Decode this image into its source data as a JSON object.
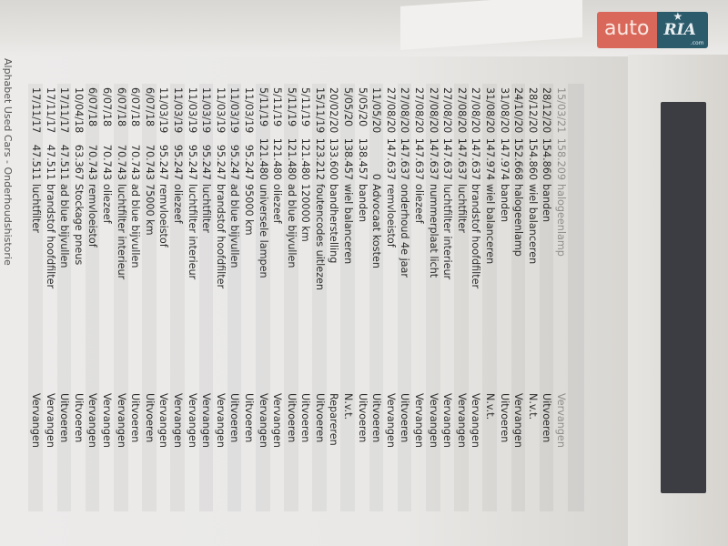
{
  "logo": {
    "auto": "auto",
    "ria": "RIA",
    "com": ".com"
  },
  "footer": "Alphabet  Used Cars - Onderhoudshistorie",
  "rows": [
    {
      "date": "15/03/21",
      "km": "158.209",
      "desc": "halogeenlamp",
      "action": "Vervangen"
    },
    {
      "date": "28/12/20",
      "km": "154.860",
      "desc": "banden",
      "action": "Uitvoeren"
    },
    {
      "date": "28/12/20",
      "km": "154.860",
      "desc": "wiel balanceren",
      "action": "N.v.t."
    },
    {
      "date": "24/10/20",
      "km": "152.668",
      "desc": "halogeenlamp",
      "action": "Vervangen"
    },
    {
      "date": "31/08/20",
      "km": "147.974",
      "desc": "banden",
      "action": "Uitvoeren"
    },
    {
      "date": "31/08/20",
      "km": "147.974",
      "desc": "wiel balanceren",
      "action": "N.v.t."
    },
    {
      "date": "27/08/20",
      "km": "147.637",
      "desc": "brandstof hoofdfilter",
      "action": "Vervangen"
    },
    {
      "date": "27/08/20",
      "km": "147.637",
      "desc": "luchtfilter",
      "action": "Vervangen"
    },
    {
      "date": "27/08/20",
      "km": "147.637",
      "desc": "luchtfilter interieur",
      "action": "Vervangen"
    },
    {
      "date": "27/08/20",
      "km": "147.637",
      "desc": "nummerplaat licht",
      "action": "Vervangen"
    },
    {
      "date": "27/08/20",
      "km": "147.637",
      "desc": "oliezeef",
      "action": "Vervangen"
    },
    {
      "date": "27/08/20",
      "km": "147.637",
      "desc": "onderhoud 4e jaar",
      "action": "Uitvoeren"
    },
    {
      "date": "27/08/20",
      "km": "147.637",
      "desc": "remvloeistof",
      "action": "Vervangen"
    },
    {
      "date": "11/05/20",
      "km": "0",
      "desc": "Advocaat kosten",
      "action": "Uitvoeren"
    },
    {
      "date": "5/05/20",
      "km": "138.457",
      "desc": "banden",
      "action": "Uitvoeren"
    },
    {
      "date": "5/05/20",
      "km": "138.457",
      "desc": "wiel balanceren",
      "action": "N.v.t."
    },
    {
      "date": "20/02/20",
      "km": "133.600",
      "desc": "bandherstelling",
      "action": "Repareren"
    },
    {
      "date": "15/11/19",
      "km": "123.212",
      "desc": "foutencodes uitlezen",
      "action": "Uitvoeren"
    },
    {
      "date": "5/11/19",
      "km": "121.480",
      "desc": "120000 km",
      "action": "Uitvoeren"
    },
    {
      "date": "5/11/19",
      "km": "121.480",
      "desc": "ad blue bijvullen",
      "action": "Uitvoeren"
    },
    {
      "date": "5/11/19",
      "km": "121.480",
      "desc": "oliezeef",
      "action": "Vervangen"
    },
    {
      "date": "5/11/19",
      "km": "121.480",
      "desc": "universele lampen",
      "action": "Vervangen"
    },
    {
      "date": "11/03/19",
      "km": "95.247",
      "desc": "95000 km",
      "action": "Uitvoeren"
    },
    {
      "date": "11/03/19",
      "km": "95.247",
      "desc": "ad blue bijvullen",
      "action": "Uitvoeren"
    },
    {
      "date": "11/03/19",
      "km": "95.247",
      "desc": "brandstof hoofdfilter",
      "action": "Vervangen"
    },
    {
      "date": "11/03/19",
      "km": "95.247",
      "desc": "luchtfilter",
      "action": "Vervangen"
    },
    {
      "date": "11/03/19",
      "km": "95.247",
      "desc": "luchtfilter interieur",
      "action": "Vervangen"
    },
    {
      "date": "11/03/19",
      "km": "95.247",
      "desc": "oliezeef",
      "action": "Vervangen"
    },
    {
      "date": "11/03/19",
      "km": "95.247",
      "desc": "remvloeistof",
      "action": "Vervangen"
    },
    {
      "date": "6/07/18",
      "km": "70.743",
      "desc": "75000 km",
      "action": "Uitvoeren"
    },
    {
      "date": "6/07/18",
      "km": "70.743",
      "desc": "ad blue bijvullen",
      "action": "Uitvoeren"
    },
    {
      "date": "6/07/18",
      "km": "70.743",
      "desc": "luchtfilter interieur",
      "action": "Vervangen"
    },
    {
      "date": "6/07/18",
      "km": "70.743",
      "desc": "oliezeef",
      "action": "Vervangen"
    },
    {
      "date": "6/07/18",
      "km": "70.743",
      "desc": "remvloeistof",
      "action": "Vervangen"
    },
    {
      "date": "10/04/18",
      "km": "63.367",
      "desc": "Stockage pneus",
      "action": "Uitvoeren"
    },
    {
      "date": "17/11/17",
      "km": "47.511",
      "desc": "ad blue bijvullen",
      "action": "Uitvoeren"
    },
    {
      "date": "17/11/17",
      "km": "47.511",
      "desc": "brandstof hoofdfilter",
      "action": "Vervangen"
    },
    {
      "date": "17/11/17",
      "km": "47.511",
      "desc": "luchtfilter",
      "action": "Vervangen"
    }
  ]
}
